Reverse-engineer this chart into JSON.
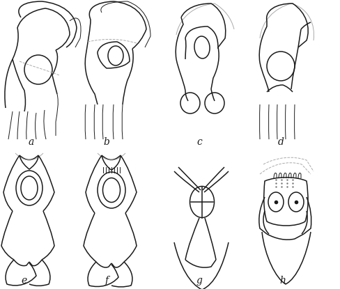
{
  "bg_color": "#ffffff",
  "line_color": "#1a1a1a",
  "dashed_color": "#aaaaaa",
  "labels": [
    "a",
    "b",
    "c",
    "d",
    "e",
    "f",
    "g",
    "h"
  ],
  "label_fontsize": 10,
  "figsize": [
    4.88,
    4.15
  ],
  "dpi": 100
}
